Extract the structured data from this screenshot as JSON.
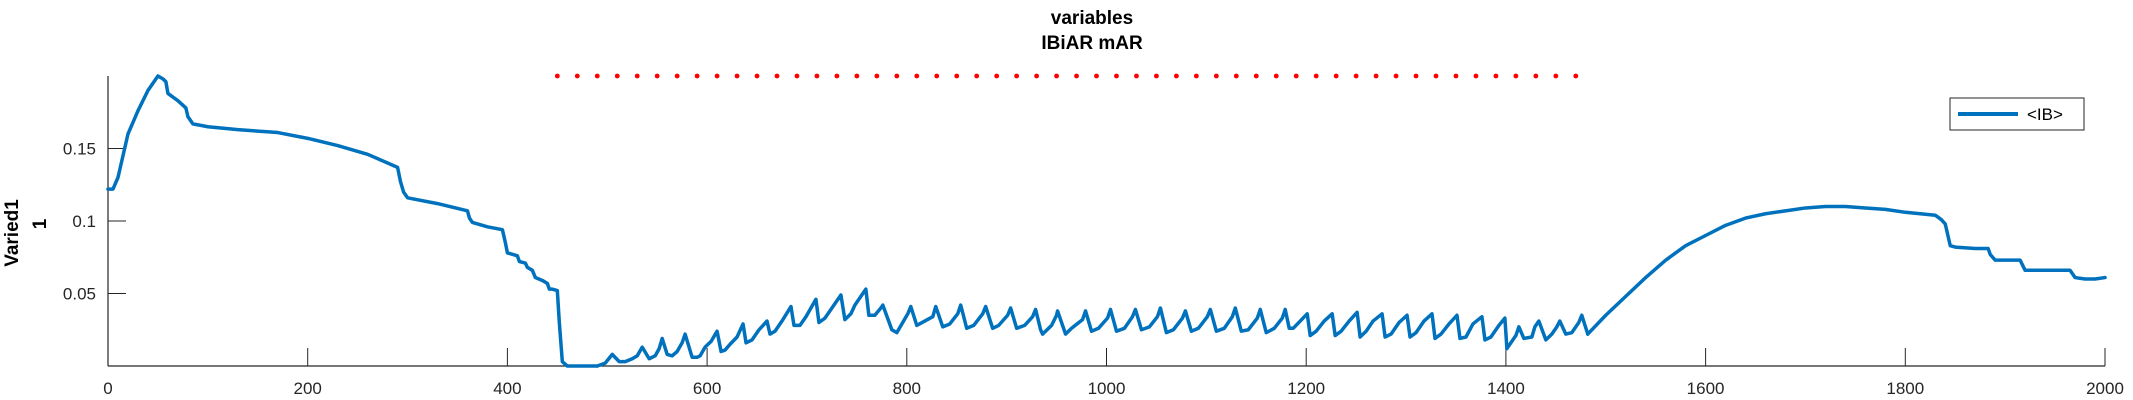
{
  "chart_data": {
    "type": "line",
    "title": [
      "variables",
      "IBiAR mAR"
    ],
    "xlabel": "",
    "ylabel": [
      "Varied1",
      "1"
    ],
    "xlim": [
      0,
      2000
    ],
    "ylim": [
      0,
      0.2
    ],
    "xticks": [
      0,
      200,
      400,
      600,
      800,
      1000,
      1200,
      1400,
      1600,
      1800,
      2000
    ],
    "xtick_labels": [
      "0",
      "200",
      "400",
      "600",
      "800",
      "1000",
      "1200",
      "1400",
      "1600",
      "1800",
      "2000"
    ],
    "yticks": [
      0.05,
      0.1,
      0.15
    ],
    "ytick_labels": [
      "0.05",
      "0.1",
      "0.15"
    ],
    "grid": false,
    "legend_position": "top-right",
    "colors": {
      "series": "#0072BD",
      "marker": "#FF0000",
      "axis": "#262626"
    },
    "series": [
      {
        "name": "<IB>",
        "color": "#0072BD",
        "x": [
          0,
          5,
          10,
          15,
          20,
          25,
          30,
          40,
          50,
          55,
          58,
          60,
          70,
          78,
          80,
          85,
          100,
          130,
          170,
          200,
          230,
          260,
          280,
          290,
          293,
          296,
          300,
          330,
          360,
          362,
          365,
          380,
          395,
          398,
          400,
          405,
          410,
          412,
          418,
          420,
          425,
          428,
          435,
          440,
          442,
          445,
          450,
          452,
          455,
          460,
          480,
          490
        ],
        "y": [
          0.122,
          0.122,
          0.13,
          0.145,
          0.16,
          0.168,
          0.176,
          0.19,
          0.2,
          0.198,
          0.196,
          0.188,
          0.183,
          0.178,
          0.172,
          0.167,
          0.165,
          0.163,
          0.161,
          0.157,
          0.152,
          0.146,
          0.14,
          0.137,
          0.127,
          0.12,
          0.116,
          0.112,
          0.107,
          0.102,
          0.099,
          0.096,
          0.094,
          0.085,
          0.078,
          0.077,
          0.076,
          0.072,
          0.071,
          0.068,
          0.066,
          0.061,
          0.059,
          0.057,
          0.053,
          0.053,
          0.052,
          0.03,
          0.003,
          0.0,
          0.0,
          0.0
        ]
      },
      {
        "name": "<IB>",
        "color": "#0072BD",
        "x": [
          490,
          498,
          505,
          512,
          518,
          525,
          530,
          535,
          542,
          548,
          552,
          555,
          560,
          565,
          570,
          575,
          578,
          585,
          590,
          593,
          598,
          604,
          610,
          614,
          618,
          623,
          630,
          636,
          639,
          645,
          652,
          660,
          663,
          668,
          675,
          684,
          687,
          693,
          699,
          709,
          712,
          718,
          722,
          734,
          738,
          744,
          748,
          759,
          762,
          768,
          774,
          776,
          785,
          790,
          801,
          804,
          810,
          818,
          826,
          829,
          836,
          843,
          851,
          854,
          860,
          867,
          876,
          879,
          886,
          892,
          901,
          904,
          910,
          918,
          926,
          929,
          934,
          936,
          945,
          950,
          951,
          959,
          965,
          976,
          979,
          985,
          992,
          1001,
          1004,
          1010,
          1018,
          1026,
          1029,
          1035,
          1043,
          1051,
          1054,
          1060,
          1067,
          1076,
          1079,
          1085,
          1092,
          1101,
          1104,
          1110,
          1118,
          1126,
          1129,
          1135,
          1142,
          1151,
          1154,
          1160,
          1168,
          1176,
          1179,
          1183,
          1187,
          1194,
          1201,
          1204,
          1210,
          1218,
          1226,
          1229,
          1235,
          1243,
          1251,
          1254,
          1260,
          1267,
          1276,
          1279,
          1285,
          1293,
          1301,
          1304,
          1310,
          1318,
          1326,
          1329,
          1335,
          1343,
          1351,
          1354,
          1360,
          1367,
          1376,
          1379,
          1385,
          1393,
          1399,
          1401,
          1405,
          1410,
          1413,
          1418,
          1426,
          1429,
          1433,
          1440,
          1446,
          1451,
          1454,
          1460,
          1466,
          1473,
          1476,
          1482
        ],
        "y": [
          0.0,
          0.002,
          0.008,
          0.003,
          0.003,
          0.005,
          0.007,
          0.013,
          0.005,
          0.007,
          0.012,
          0.019,
          0.008,
          0.007,
          0.01,
          0.016,
          0.022,
          0.006,
          0.006,
          0.007,
          0.013,
          0.017,
          0.024,
          0.01,
          0.011,
          0.015,
          0.02,
          0.029,
          0.016,
          0.018,
          0.025,
          0.031,
          0.022,
          0.024,
          0.031,
          0.041,
          0.028,
          0.028,
          0.034,
          0.046,
          0.03,
          0.033,
          0.037,
          0.049,
          0.032,
          0.036,
          0.042,
          0.053,
          0.035,
          0.035,
          0.04,
          0.042,
          0.025,
          0.023,
          0.036,
          0.041,
          0.028,
          0.031,
          0.034,
          0.041,
          0.027,
          0.029,
          0.036,
          0.042,
          0.026,
          0.028,
          0.036,
          0.041,
          0.026,
          0.028,
          0.035,
          0.04,
          0.026,
          0.028,
          0.034,
          0.039,
          0.025,
          0.022,
          0.028,
          0.035,
          0.038,
          0.022,
          0.026,
          0.032,
          0.038,
          0.024,
          0.026,
          0.033,
          0.039,
          0.024,
          0.026,
          0.034,
          0.039,
          0.025,
          0.027,
          0.034,
          0.04,
          0.023,
          0.025,
          0.033,
          0.038,
          0.024,
          0.026,
          0.034,
          0.039,
          0.024,
          0.026,
          0.034,
          0.04,
          0.024,
          0.025,
          0.033,
          0.039,
          0.023,
          0.026,
          0.033,
          0.039,
          0.026,
          0.026,
          0.031,
          0.036,
          0.021,
          0.024,
          0.031,
          0.036,
          0.021,
          0.024,
          0.031,
          0.037,
          0.02,
          0.024,
          0.031,
          0.036,
          0.02,
          0.022,
          0.03,
          0.035,
          0.02,
          0.023,
          0.031,
          0.036,
          0.019,
          0.022,
          0.029,
          0.035,
          0.019,
          0.02,
          0.029,
          0.034,
          0.018,
          0.02,
          0.028,
          0.033,
          0.012,
          0.016,
          0.021,
          0.027,
          0.019,
          0.02,
          0.027,
          0.031,
          0.018,
          0.022,
          0.027,
          0.031,
          0.022,
          0.023,
          0.03,
          0.035,
          0.022
        ]
      },
      {
        "name": "<IB>",
        "color": "#0072BD",
        "x": [
          1482,
          1500,
          1520,
          1540,
          1560,
          1580,
          1600,
          1620,
          1640,
          1660,
          1680,
          1700,
          1720,
          1740,
          1760,
          1780,
          1800,
          1815,
          1830,
          1836,
          1840,
          1845,
          1850,
          1870,
          1880,
          1883,
          1885,
          1890,
          1900,
          1910,
          1915,
          1920,
          1930,
          1935,
          1940,
          1945,
          1950,
          1960,
          1965,
          1970,
          1980,
          1990,
          2000
        ],
        "y": [
          0.022,
          0.035,
          0.048,
          0.061,
          0.073,
          0.083,
          0.09,
          0.097,
          0.102,
          0.105,
          0.107,
          0.109,
          0.11,
          0.11,
          0.109,
          0.108,
          0.106,
          0.105,
          0.104,
          0.101,
          0.098,
          0.083,
          0.082,
          0.081,
          0.081,
          0.081,
          0.077,
          0.073,
          0.073,
          0.073,
          0.073,
          0.066,
          0.066,
          0.066,
          0.066,
          0.066,
          0.066,
          0.066,
          0.066,
          0.061,
          0.06,
          0.06,
          0.061
        ]
      }
    ],
    "markers": {
      "name": "",
      "color": "#FF0000",
      "style": "dotted",
      "y_level": 0.2,
      "x_start": 450,
      "x_end": 1485,
      "x_step": 20
    },
    "legend": [
      {
        "label": "<IB>",
        "color": "#0072BD"
      }
    ]
  }
}
